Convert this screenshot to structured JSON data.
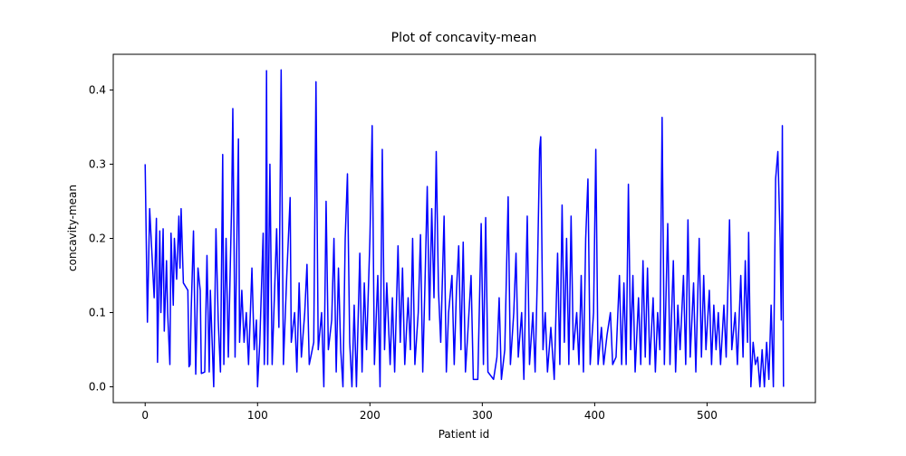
{
  "chart_data": {
    "type": "line",
    "title": "Plot of concavity-mean",
    "x_label": "Patient id",
    "y_label": "concavity-mean",
    "x": [
      0,
      2,
      4,
      6,
      8,
      10,
      11,
      13,
      14,
      16,
      17,
      19,
      20,
      22,
      23,
      25,
      26,
      28,
      30,
      31,
      32,
      34,
      38,
      39,
      40,
      41,
      43,
      45,
      47,
      49,
      50,
      53,
      55,
      57,
      58,
      61,
      63,
      65,
      67,
      69,
      70,
      72,
      74,
      77,
      78,
      80,
      83,
      84,
      86,
      88,
      90,
      92,
      95,
      97,
      99,
      100,
      102,
      105,
      106,
      107,
      108,
      109,
      111,
      113,
      117,
      119,
      121,
      123,
      126,
      129,
      130,
      133,
      135,
      137,
      139,
      142,
      144,
      146,
      150,
      152,
      154,
      157,
      159,
      161,
      163,
      166,
      168,
      170,
      172,
      174,
      176,
      178,
      180,
      182,
      184,
      186,
      188,
      191,
      193,
      195,
      197,
      200,
      202,
      204,
      207,
      209,
      211,
      213,
      215,
      218,
      220,
      222,
      225,
      227,
      229,
      231,
      234,
      236,
      238,
      240,
      243,
      245,
      247,
      249,
      251,
      253,
      255,
      257,
      259,
      261,
      263,
      266,
      268,
      270,
      273,
      275,
      277,
      279,
      281,
      283,
      285,
      287,
      290,
      292,
      296,
      299,
      301,
      303,
      305,
      310,
      313,
      315,
      317,
      320,
      323,
      325,
      328,
      330,
      332,
      335,
      337,
      340,
      342,
      345,
      347,
      349,
      351,
      352,
      354,
      356,
      358,
      361,
      364,
      367,
      369,
      371,
      373,
      375,
      377,
      379,
      381,
      384,
      386,
      388,
      390,
      392,
      394,
      396,
      399,
      401,
      403,
      406,
      408,
      411,
      414,
      416,
      419,
      422,
      424,
      426,
      428,
      430,
      432,
      434,
      436,
      439,
      441,
      443,
      445,
      447,
      449,
      452,
      454,
      456,
      458,
      460,
      462,
      465,
      467,
      470,
      472,
      474,
      476,
      479,
      481,
      483,
      485,
      488,
      490,
      493,
      495,
      497,
      499,
      502,
      504,
      506,
      508,
      510,
      512,
      515,
      517,
      520,
      522,
      525,
      527,
      530,
      532,
      534,
      536,
      537,
      539,
      541,
      543,
      545,
      547,
      549,
      551,
      553,
      555,
      557,
      559,
      561,
      563,
      565,
      566,
      567,
      568
    ],
    "series": [
      {
        "color": "#0000ff",
        "values": [
          0.3,
          0.087,
          0.24,
          0.18,
          0.12,
          0.227,
          0.033,
          0.21,
          0.1,
          0.213,
          0.075,
          0.17,
          0.1,
          0.03,
          0.207,
          0.11,
          0.2,
          0.145,
          0.23,
          0.16,
          0.24,
          0.14,
          0.13,
          0.027,
          0.03,
          0.105,
          0.21,
          0.017,
          0.16,
          0.13,
          0.018,
          0.02,
          0.177,
          0.02,
          0.13,
          0.0,
          0.213,
          0.09,
          0.02,
          0.313,
          0.03,
          0.2,
          0.04,
          0.25,
          0.375,
          0.04,
          0.334,
          0.06,
          0.13,
          0.06,
          0.1,
          0.03,
          0.16,
          0.05,
          0.09,
          0.0,
          0.06,
          0.207,
          0.03,
          0.1,
          0.426,
          0.03,
          0.3,
          0.03,
          0.213,
          0.08,
          0.427,
          0.03,
          0.15,
          0.255,
          0.06,
          0.1,
          0.02,
          0.14,
          0.04,
          0.1,
          0.165,
          0.03,
          0.06,
          0.411,
          0.05,
          0.1,
          0.0,
          0.25,
          0.05,
          0.09,
          0.2,
          0.02,
          0.16,
          0.05,
          0.0,
          0.2,
          0.287,
          0.06,
          0.0,
          0.11,
          0.0,
          0.18,
          0.02,
          0.14,
          0.05,
          0.2,
          0.352,
          0.03,
          0.15,
          0.0,
          0.32,
          0.05,
          0.14,
          0.03,
          0.12,
          0.02,
          0.19,
          0.06,
          0.16,
          0.03,
          0.12,
          0.05,
          0.2,
          0.03,
          0.1,
          0.205,
          0.02,
          0.14,
          0.27,
          0.09,
          0.24,
          0.12,
          0.317,
          0.13,
          0.06,
          0.23,
          0.02,
          0.1,
          0.15,
          0.03,
          0.13,
          0.19,
          0.05,
          0.195,
          0.02,
          0.07,
          0.15,
          0.01,
          0.01,
          0.22,
          0.03,
          0.228,
          0.02,
          0.01,
          0.04,
          0.12,
          0.01,
          0.05,
          0.256,
          0.03,
          0.1,
          0.18,
          0.04,
          0.1,
          0.01,
          0.23,
          0.03,
          0.1,
          0.02,
          0.15,
          0.32,
          0.337,
          0.05,
          0.1,
          0.02,
          0.08,
          0.01,
          0.18,
          0.03,
          0.245,
          0.06,
          0.2,
          0.03,
          0.23,
          0.05,
          0.1,
          0.03,
          0.15,
          0.02,
          0.2,
          0.28,
          0.03,
          0.1,
          0.32,
          0.03,
          0.08,
          0.03,
          0.07,
          0.1,
          0.03,
          0.04,
          0.15,
          0.03,
          0.14,
          0.03,
          0.273,
          0.05,
          0.15,
          0.02,
          0.12,
          0.03,
          0.17,
          0.04,
          0.16,
          0.03,
          0.12,
          0.02,
          0.1,
          0.05,
          0.363,
          0.03,
          0.22,
          0.03,
          0.17,
          0.02,
          0.11,
          0.05,
          0.15,
          0.03,
          0.225,
          0.04,
          0.14,
          0.02,
          0.2,
          0.04,
          0.15,
          0.05,
          0.13,
          0.03,
          0.11,
          0.05,
          0.1,
          0.03,
          0.11,
          0.04,
          0.225,
          0.05,
          0.1,
          0.03,
          0.15,
          0.04,
          0.17,
          0.06,
          0.208,
          0.0,
          0.06,
          0.03,
          0.04,
          0.0,
          0.05,
          0.0,
          0.06,
          0.01,
          0.11,
          0.0,
          0.28,
          0.317,
          0.2,
          0.09,
          0.352,
          0.0
        ]
      }
    ],
    "xlim": [
      -28.4,
      596.4
    ],
    "ylim": [
      -0.0213,
      0.4481
    ],
    "xticks": [
      0,
      100,
      200,
      300,
      400,
      500
    ],
    "yticks": [
      {
        "value": 0,
        "label": "0.0"
      },
      0.1,
      0.2,
      0.3,
      0.4
    ]
  }
}
